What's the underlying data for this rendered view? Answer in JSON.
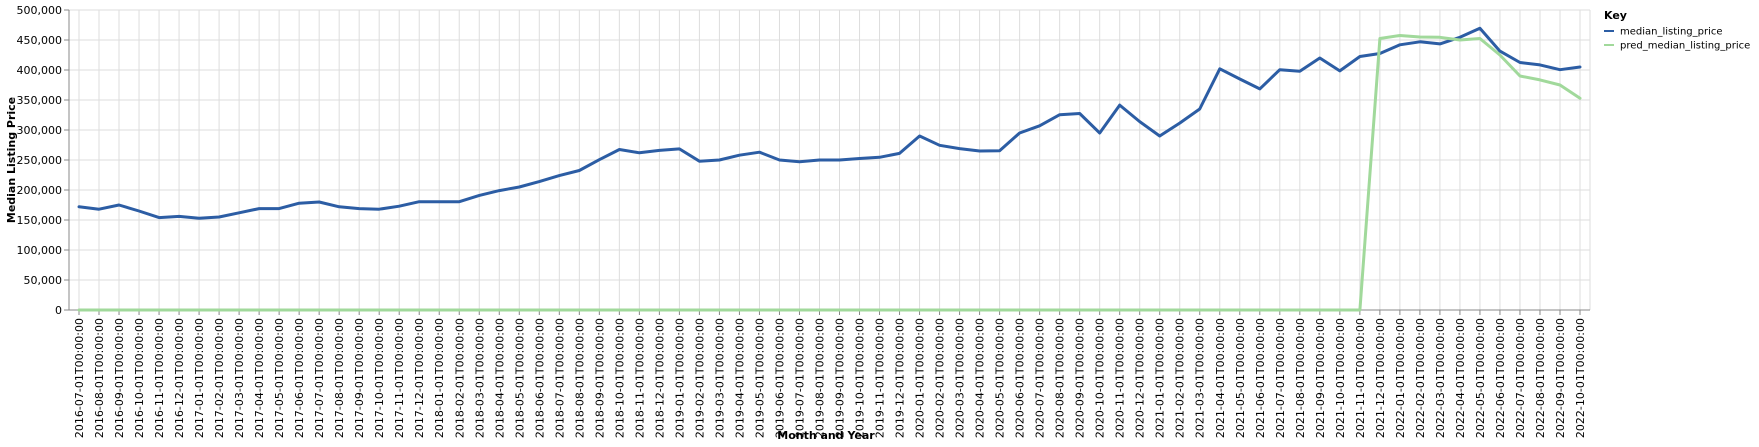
{
  "chart_data": {
    "type": "line",
    "xlabel": "Month and Year",
    "ylabel": "Median Listing Price",
    "ylim": [
      0,
      500000
    ],
    "yticks": [
      0,
      50000,
      100000,
      150000,
      200000,
      250000,
      300000,
      350000,
      400000,
      450000,
      500000
    ],
    "ytick_labels": [
      "0",
      "50,000",
      "100,000",
      "150,000",
      "200,000",
      "250,000",
      "300,000",
      "350,000",
      "400,000",
      "450,000",
      "500,000"
    ],
    "grid": true,
    "legend_position": "top-right",
    "legend_title": "Key",
    "x": [
      "2016-07-01T00:00:00",
      "2016-08-01T00:00:00",
      "2016-09-01T00:00:00",
      "2016-10-01T00:00:00",
      "2016-11-01T00:00:00",
      "2016-12-01T00:00:00",
      "2017-01-01T00:00:00",
      "2017-02-01T00:00:00",
      "2017-03-01T00:00:00",
      "2017-04-01T00:00:00",
      "2017-05-01T00:00:00",
      "2017-06-01T00:00:00",
      "2017-07-01T00:00:00",
      "2017-08-01T00:00:00",
      "2017-09-01T00:00:00",
      "2017-10-01T00:00:00",
      "2017-11-01T00:00:00",
      "2017-12-01T00:00:00",
      "2018-01-01T00:00:00",
      "2018-02-01T00:00:00",
      "2018-03-01T00:00:00",
      "2018-04-01T00:00:00",
      "2018-05-01T00:00:00",
      "2018-06-01T00:00:00",
      "2018-07-01T00:00:00",
      "2018-08-01T00:00:00",
      "2018-09-01T00:00:00",
      "2018-10-01T00:00:00",
      "2018-11-01T00:00:00",
      "2018-12-01T00:00:00",
      "2019-01-01T00:00:00",
      "2019-02-01T00:00:00",
      "2019-03-01T00:00:00",
      "2019-04-01T00:00:00",
      "2019-05-01T00:00:00",
      "2019-06-01T00:00:00",
      "2019-07-01T00:00:00",
      "2019-08-01T00:00:00",
      "2019-09-01T00:00:00",
      "2019-10-01T00:00:00",
      "2019-11-01T00:00:00",
      "2019-12-01T00:00:00",
      "2020-01-01T00:00:00",
      "2020-02-01T00:00:00",
      "2020-03-01T00:00:00",
      "2020-04-01T00:00:00",
      "2020-05-01T00:00:00",
      "2020-06-01T00:00:00",
      "2020-07-01T00:00:00",
      "2020-08-01T00:00:00",
      "2020-09-01T00:00:00",
      "2020-10-01T00:00:00",
      "2020-11-01T00:00:00",
      "2020-12-01T00:00:00",
      "2021-01-01T00:00:00",
      "2021-02-01T00:00:00",
      "2021-03-01T00:00:00",
      "2021-04-01T00:00:00",
      "2021-05-01T00:00:00",
      "2021-06-01T00:00:00",
      "2021-07-01T00:00:00",
      "2021-08-01T00:00:00",
      "2021-09-01T00:00:00",
      "2021-10-01T00:00:00",
      "2021-11-01T00:00:00",
      "2021-12-01T00:00:00",
      "2022-01-01T00:00:00",
      "2022-02-01T00:00:00",
      "2022-03-01T00:00:00",
      "2022-04-01T00:00:00",
      "2022-05-01T00:00:00",
      "2022-06-01T00:00:00",
      "2022-07-01T00:00:00",
      "2022-08-01T00:00:00",
      "2022-09-01T00:00:00",
      "2022-10-01T00:00:00"
    ],
    "series": [
      {
        "name": "median_listing_price",
        "color": "#2c5da4",
        "values": [
          172000,
          168000,
          175000,
          165000,
          154000,
          156000,
          153000,
          155000,
          162000,
          169000,
          169000,
          178000,
          180000,
          172000,
          169000,
          168000,
          173000,
          180500,
          180500,
          180500,
          191000,
          199000,
          205000,
          214000,
          224000,
          232500,
          250500,
          267500,
          262000,
          266000,
          268500,
          248000,
          250000,
          258000,
          263000,
          250000,
          247000,
          250000,
          250000,
          252500,
          254500,
          261000,
          290000,
          274500,
          269000,
          265000,
          265500,
          295000,
          307000,
          325500,
          327500,
          295000,
          341500,
          314000,
          290000,
          311500,
          335000,
          402000,
          385000,
          368500,
          400500,
          398000,
          420000,
          398500,
          422500,
          427500,
          442000,
          447000,
          443500,
          454500,
          469500,
          431500,
          412500,
          408500,
          400500,
          405000
        ]
      },
      {
        "name": "pred_median_listing_price",
        "color": "#a1d99b",
        "values": [
          0,
          0,
          0,
          0,
          0,
          0,
          0,
          0,
          0,
          0,
          0,
          0,
          0,
          0,
          0,
          0,
          0,
          0,
          0,
          0,
          0,
          0,
          0,
          0,
          0,
          0,
          0,
          0,
          0,
          0,
          0,
          0,
          0,
          0,
          0,
          0,
          0,
          0,
          0,
          0,
          0,
          0,
          0,
          0,
          0,
          0,
          0,
          0,
          0,
          0,
          0,
          0,
          0,
          0,
          0,
          0,
          0,
          0,
          0,
          0,
          0,
          0,
          0,
          0,
          0,
          452500,
          457500,
          455000,
          454500,
          450000,
          452500,
          425000,
          390000,
          383500,
          375000,
          353000
        ]
      }
    ]
  }
}
